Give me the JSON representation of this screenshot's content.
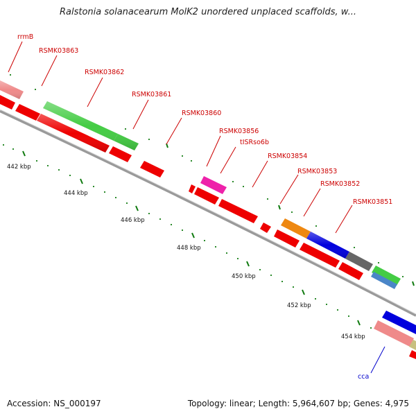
{
  "title": "Ralstonia solanacearum MolK2 unordered unplaced scaffolds, w...",
  "footer": {
    "accession": "Accession: NS_000197",
    "summary": "Topology: linear; Length: 5,964,607 bp; Genes: 4,975"
  },
  "colors": {
    "cds": "#ee0000",
    "rrna": "#ee8888",
    "label_red": "#cc0000",
    "label_blue": "#0000cc",
    "tick": "#006600",
    "backbone": "#888888"
  },
  "ticks": [
    "442 kbp",
    "444 kbp",
    "446 kbp",
    "448 kbp",
    "450 kbp",
    "452 kbp",
    "454 kbp"
  ],
  "labels": [
    "rrmB",
    "RSMK03863",
    "RSMK03862",
    "RSMK03861",
    "RSMK03860",
    "RSMK03856",
    "tISRso6b",
    "RSMK03854",
    "RSMK03853",
    "RSMK03852",
    "RSMK03851",
    "cca"
  ]
}
